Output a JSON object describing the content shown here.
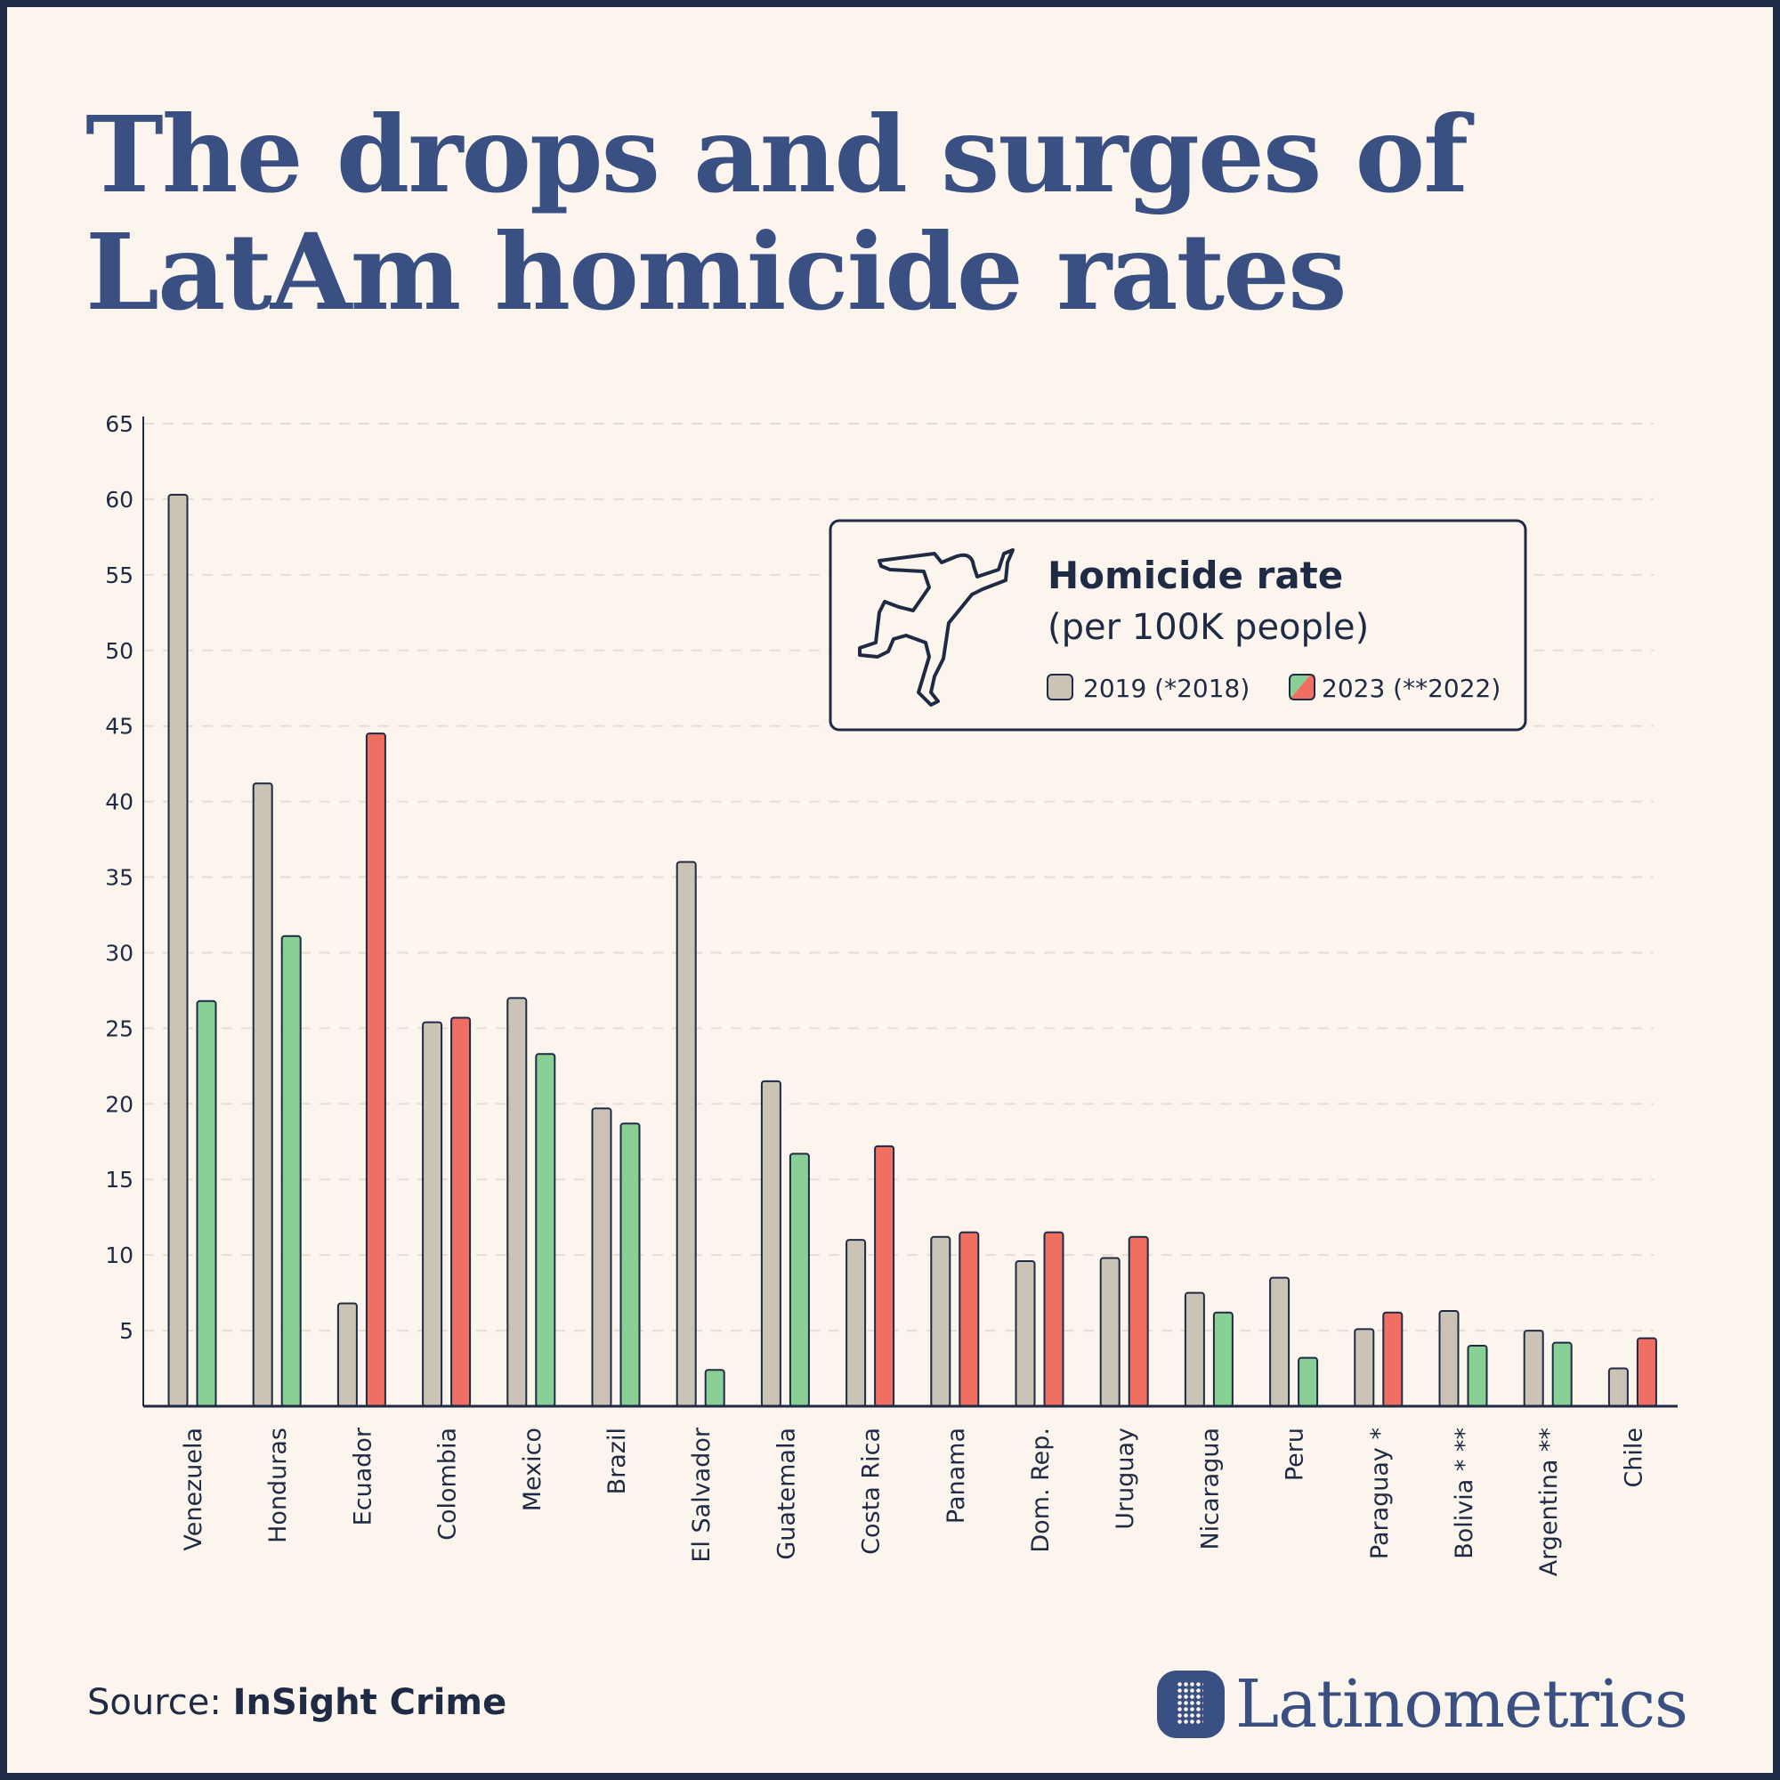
{
  "title_line1": "The drops and surges of",
  "title_line2": "LatAm homicide rates",
  "legend": {
    "title": "Homicide rate",
    "subtitle": "(per 100K people)",
    "item_2019": "2019 (*2018)",
    "item_2023": "2023 (**2022)",
    "icon": "crime-scene-body-outline-icon"
  },
  "source_label": "Source:",
  "source_name": "InSight Crime",
  "brand": "Latinometrics",
  "colors": {
    "baseline": "#cbc3b5",
    "decrease": "#88d095",
    "increase": "#ef7062",
    "outline": "#1f2a44",
    "title": "#3a5083"
  },
  "chart_data": {
    "type": "bar",
    "title": "",
    "xlabel": "",
    "ylabel": "",
    "ylim": [
      0,
      65
    ],
    "yticks": [
      5,
      10,
      15,
      20,
      25,
      30,
      35,
      40,
      45,
      50,
      55,
      60,
      65
    ],
    "grid": true,
    "legend_position": "top-right",
    "categories": [
      "Venezuela",
      "Honduras",
      "Ecuador",
      "Colombia",
      "Mexico",
      "Brazil",
      "El Salvador",
      "Guatemala",
      "Costa Rica",
      "Panama",
      "Dom. Rep.",
      "Uruguay",
      "Nicaragua",
      "Peru",
      "Paraguay *",
      "Bolivia * **",
      "Argentina **",
      "Chile"
    ],
    "series": [
      {
        "name": "2019 (*2018)",
        "values": [
          60.3,
          41.2,
          6.8,
          25.4,
          27.0,
          19.7,
          36.0,
          21.5,
          11.0,
          11.2,
          9.6,
          9.8,
          7.5,
          8.5,
          5.1,
          6.3,
          5.0,
          2.5
        ]
      },
      {
        "name": "2023 (**2022)",
        "values": [
          26.8,
          31.1,
          44.5,
          25.7,
          23.3,
          18.7,
          2.4,
          16.7,
          17.2,
          11.5,
          11.5,
          11.2,
          6.2,
          3.2,
          6.2,
          4.0,
          4.2,
          4.5
        ]
      }
    ]
  }
}
